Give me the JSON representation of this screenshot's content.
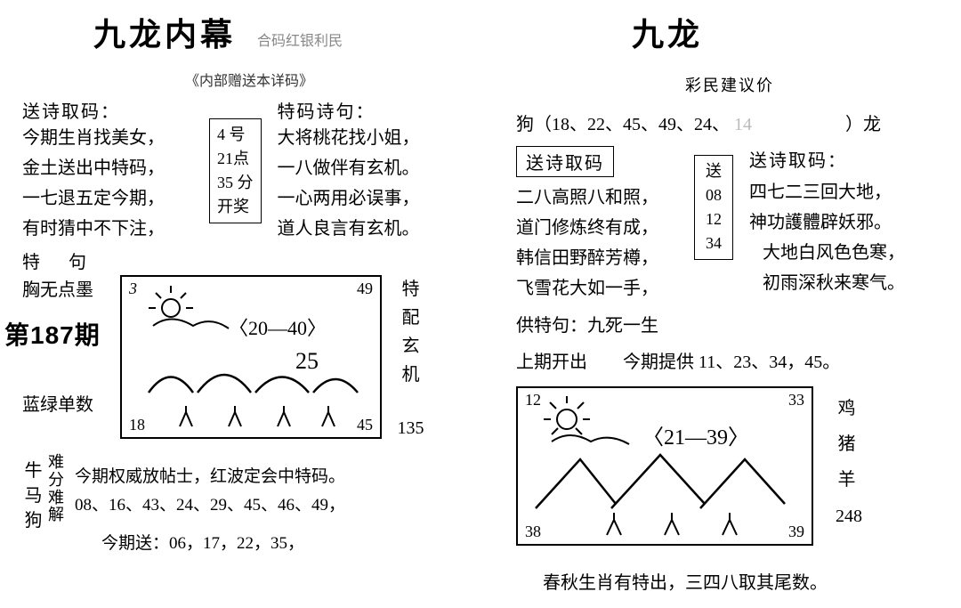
{
  "left": {
    "title": "九龙内幕",
    "title_faint": "合码红银利民",
    "sub_line": "《内部赠送本详码》",
    "poem_header_l": "送诗取码：",
    "poem_header_r": "特码诗句：",
    "poem_l1": "今期生肖找美女，",
    "poem_l2": "金土送出中特码，",
    "poem_l3": "一七退五定今期，",
    "poem_l4": "有时猜中不下注，",
    "box_l1": "4 号",
    "box_l2": "21点",
    "box_l3": "35 分",
    "box_l4": "开奖",
    "poem_r1": "大将桃花找小姐，",
    "poem_r2": "一八做伴有玄机。",
    "poem_r3": "一心两用必误事，",
    "poem_r4": "道人良言有玄机。",
    "te_label": "特　句",
    "te_phrase": "胸无点墨",
    "issue": "第187期",
    "blue_green": "蓝绿单数",
    "side_r": "特配玄机",
    "side_num": "135",
    "sketch": {
      "tl": "3",
      "tr": "49",
      "bl": "18",
      "br": "45",
      "range": "〈20—40〉",
      "mid": "25"
    },
    "animals": "牛马狗",
    "nanfen": "难分难解",
    "bottom1": "今期权威放帖士，红波定会中特码。",
    "bottom2": "08、16、43、24、29、45、46、49，",
    "bottom3": "今期送：06，17，22，35，"
  },
  "right": {
    "title": "九龙",
    "sub": "彩民建议价",
    "zodiac_line_a": "狗（18、22、45、49、24、",
    "zodiac_line_b": "）龙",
    "poem_header_l": "送诗取码",
    "poem_header_r": "送诗取码：",
    "poem_l1": "二八高照八和照，",
    "poem_l2": "道门修炼终有成，",
    "poem_l3": "韩信田野醉芳樽，",
    "poem_l4": "飞雪花大如一手，",
    "box_h": "送",
    "box_1": "08",
    "box_2": "12",
    "box_3": "34",
    "poem_r1": "四七二三回大地，",
    "poem_r2": "神功護體辟妖邪。",
    "poem_r3": "大地白风色色寒，",
    "poem_r4": "初雨深秋来寒气。",
    "gong_line": "供特句：九死一生",
    "prev_line": "上期开出　　今期提供 11、23、34，45。",
    "sketch": {
      "tl": "12",
      "tr": "33",
      "bl": "38",
      "br": "39",
      "range": "〈21—39〉"
    },
    "side_animals": "鸡猪羊",
    "side_num": "248",
    "bottom": "春秋生肖有特出，三四八取其尾数。"
  }
}
